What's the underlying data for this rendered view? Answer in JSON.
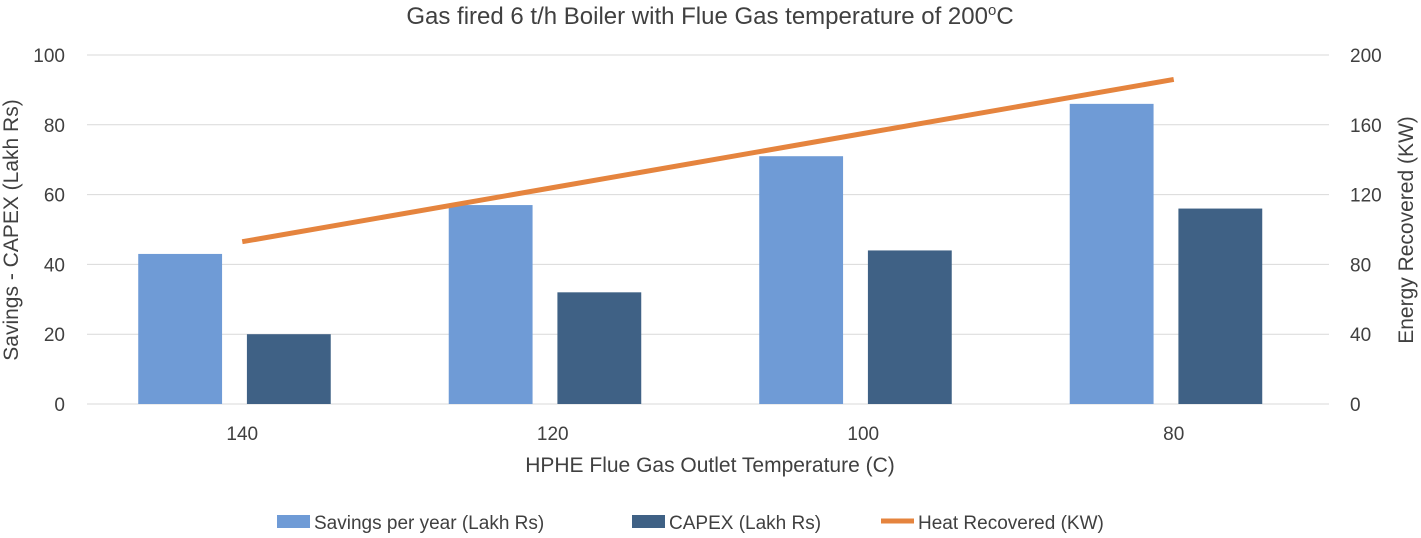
{
  "chart_data": {
    "type": "bar",
    "title": "Gas fired 6 t/h Boiler with Flue Gas temperature of 200",
    "title_super": "o",
    "title_suffix": "C",
    "xlabel": "HPHE Flue Gas Outlet Temperature (C)",
    "ylabel": "Savings - CAPEX (Lakh Rs)",
    "y2label": "Energy Recovered (KW)",
    "categories": [
      "140",
      "120",
      "100",
      "80"
    ],
    "ylim": [
      0,
      100
    ],
    "y_ticks": [
      0,
      20,
      40,
      60,
      80,
      100
    ],
    "y2lim": [
      0,
      200
    ],
    "y2_ticks": [
      0,
      40,
      80,
      120,
      160,
      200
    ],
    "grid": true,
    "legend_position": "bottom",
    "series": [
      {
        "name": "Savings per year (Lakh Rs)",
        "type": "bar",
        "axis": "left",
        "color": "#6f9bd6",
        "values": [
          43,
          57,
          71,
          86
        ]
      },
      {
        "name": "CAPEX (Lakh Rs)",
        "type": "bar",
        "axis": "left",
        "color": "#3f6185",
        "values": [
          20,
          32,
          44,
          56
        ]
      },
      {
        "name": "Heat Recovered (KW)",
        "type": "line",
        "axis": "right",
        "color": "#e5843e",
        "values": [
          93,
          124,
          155,
          186
        ]
      }
    ]
  }
}
